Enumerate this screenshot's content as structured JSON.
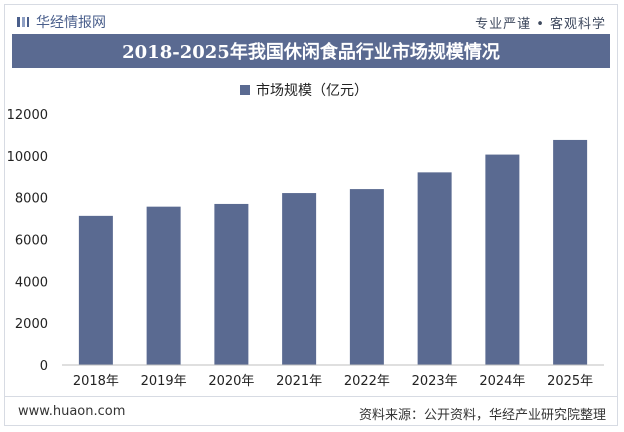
{
  "header": {
    "brand": "华经情报网",
    "motto": "专业严谨 • 客观科学"
  },
  "chart_data": {
    "type": "bar",
    "title": "2018-2025年我国休闲食品行业市场规模情况",
    "categories": [
      "2018年",
      "2019年",
      "2020年",
      "2021年",
      "2022年",
      "2023年",
      "2024年",
      "2025年"
    ],
    "series": [
      {
        "name": "市场规模（亿元）",
        "values": [
          7130,
          7570,
          7700,
          8220,
          8410,
          9210,
          10060,
          10760
        ]
      }
    ],
    "ylim": [
      0,
      12000
    ],
    "yticks": [
      "0",
      "2000",
      "4000",
      "6000",
      "8000",
      "10000",
      "12000"
    ],
    "legend_position": "top-center",
    "grid": false,
    "bar_color": "#5a6a91"
  },
  "footer": {
    "site": "www.huaon.com",
    "source_label": "资料来源：",
    "source_text": "公开资料，华经产业研究院整理"
  }
}
